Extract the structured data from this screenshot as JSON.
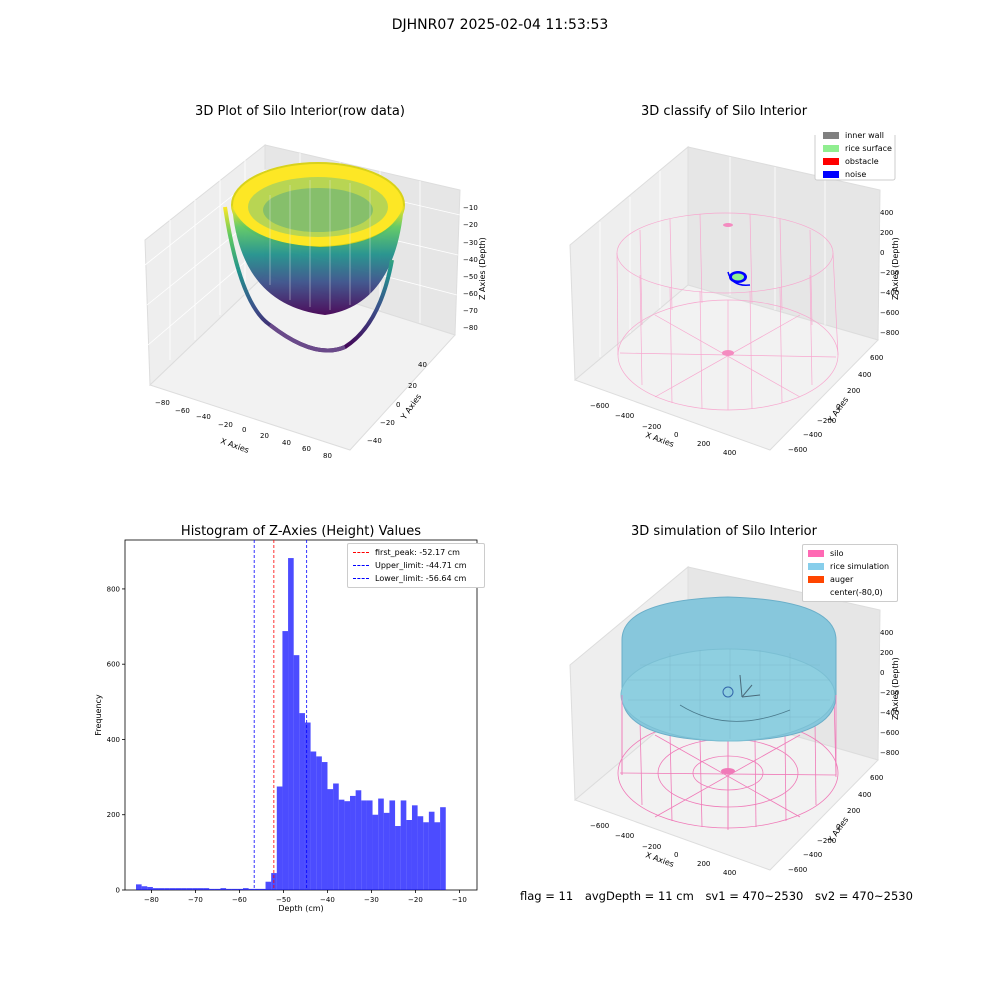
{
  "suptitle": "DJHNR07 2025-02-04 11:53:53",
  "panels": {
    "raw": {
      "title": "3D Plot of Silo Interior(row data)",
      "xlabel": "X Axies",
      "ylabel": "Y Axies",
      "zlabel": "Z Axies (Depth)",
      "xticks": [
        "−80",
        "−60",
        "−40",
        "−20",
        "0",
        "20",
        "40",
        "60",
        "80"
      ],
      "yticks": [
        "40",
        "20",
        "0",
        "−20",
        "−40"
      ],
      "zticks": [
        "−10",
        "−20",
        "−30",
        "−40",
        "−50",
        "−60",
        "−70",
        "−80"
      ]
    },
    "classify": {
      "title": "3D classify of Silo Interior",
      "xlabel": "X Axies",
      "ylabel": "Y Axies",
      "zlabel": "Z Axies (Depth)",
      "xticks": [
        "−600",
        "−400",
        "−200",
        "0",
        "200",
        "400"
      ],
      "yticks": [
        "600",
        "400",
        "200",
        "0",
        "−200",
        "−400",
        "−600"
      ],
      "zticks": [
        "400",
        "200",
        "0",
        "−200",
        "−400",
        "−600",
        "−800"
      ],
      "legend": [
        {
          "label": "inner wall",
          "color": "#808080"
        },
        {
          "label": "rice surface",
          "color": "#90ee90"
        },
        {
          "label": "obstacle",
          "color": "#ff0000"
        },
        {
          "label": "noise",
          "color": "#0000ff"
        }
      ]
    },
    "simulation": {
      "title": "3D simulation of Silo Interior",
      "xlabel": "X Axies",
      "ylabel": "Y Axies",
      "zlabel": "Z Axies (Depth)",
      "xticks": [
        "−600",
        "−400",
        "−200",
        "0",
        "200",
        "400"
      ],
      "yticks": [
        "600",
        "400",
        "200",
        "0",
        "−200",
        "−400",
        "−600"
      ],
      "zticks": [
        "400",
        "200",
        "0",
        "−200",
        "−400",
        "−600",
        "−800"
      ],
      "legend": [
        {
          "label": "silo",
          "color": "#ff69b4"
        },
        {
          "label": "rice simulation",
          "color": "#87ceeb"
        },
        {
          "label": "auger",
          "color": "#ff4500"
        },
        {
          "label": "center(-80,0)",
          "color": ""
        }
      ]
    }
  },
  "status": {
    "flag": "flag = 11",
    "avg_depth": "avgDepth = 11 cm",
    "sv1": "sv1 = 470~2530",
    "sv2": "sv2 = 470~2530"
  },
  "chart_data": [
    {
      "type": "bar",
      "title": "Histogram of Z-Axies (Height) Values",
      "xlabel": "Depth (cm)",
      "ylabel": "Frequency",
      "xlim": [
        -86,
        -6
      ],
      "ylim": [
        0,
        930
      ],
      "xticks": [
        -80,
        -70,
        -60,
        -50,
        -40,
        -30,
        -20,
        -10
      ],
      "yticks": [
        0,
        200,
        400,
        600,
        800
      ],
      "bin_width": 1.28,
      "bin_start": -83.5,
      "values": [
        15,
        10,
        8,
        5,
        5,
        5,
        5,
        5,
        5,
        5,
        5,
        5,
        5,
        3,
        3,
        5,
        3,
        3,
        3,
        5,
        3,
        3,
        3,
        22,
        45,
        275,
        688,
        882,
        624,
        470,
        445,
        368,
        355,
        340,
        268,
        283,
        240,
        236,
        250,
        265,
        238,
        238,
        200,
        243,
        205,
        238,
        170,
        238,
        186,
        225,
        196,
        180,
        208,
        180,
        220
      ],
      "bar_color": "#0000ff",
      "vlines": [
        {
          "label": "first_peak: -52.17 cm",
          "x": -52.17,
          "color": "#ff0000"
        },
        {
          "label": "Upper_limit: -44.71 cm",
          "x": -44.71,
          "color": "#0000ff"
        },
        {
          "label": "Lower_limit: -56.64 cm",
          "x": -56.64,
          "color": "#0000ff"
        }
      ]
    }
  ]
}
